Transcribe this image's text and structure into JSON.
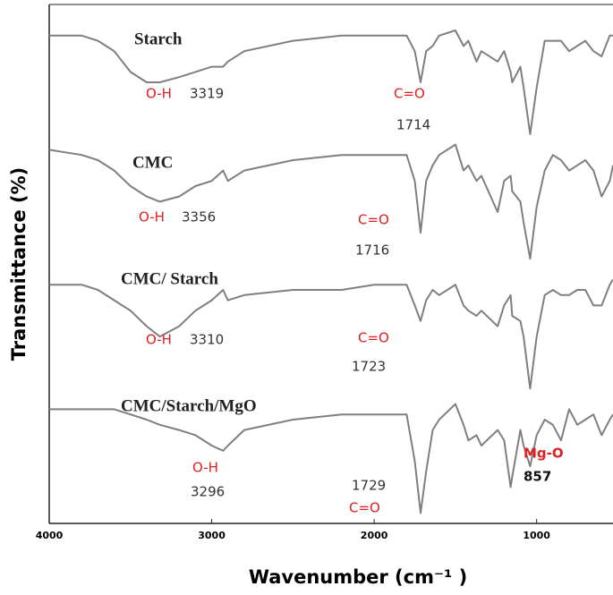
{
  "chart_data": {
    "type": "line",
    "x_label": "Wavenumber (cm⁻¹ )",
    "y_label": "Transmittance (%)",
    "xlim": [
      4000,
      530
    ],
    "xticks": [
      4000,
      3000,
      2000,
      1000
    ],
    "ylim": [
      0,
      100
    ],
    "x": [
      4000,
      3800,
      3700,
      3600,
      3500,
      3400,
      3319,
      3200,
      3100,
      3000,
      2930,
      2900,
      2800,
      2500,
      2200,
      2000,
      1800,
      1750,
      1714,
      1680,
      1640,
      1600,
      1500,
      1450,
      1420,
      1370,
      1340,
      1240,
      1200,
      1160,
      1150,
      1100,
      1080,
      1040,
      1000,
      950,
      900,
      850,
      800,
      750,
      700,
      650,
      600,
      550,
      530
    ],
    "series": [
      {
        "name": "Starch",
        "color": "#7f7f7f",
        "values": [
          94,
          94,
          93,
          91,
          87,
          85,
          85,
          86,
          87,
          88,
          88,
          89,
          91,
          93,
          94,
          94,
          94,
          91,
          85,
          91,
          92,
          94,
          95,
          92,
          93,
          89,
          91,
          89,
          91,
          87,
          85,
          88,
          84,
          75,
          84,
          93,
          93,
          93,
          91,
          92,
          93,
          91,
          90,
          94,
          94
        ]
      },
      {
        "name": "CMC",
        "color": "#7f7f7f",
        "values": [
          72,
          71,
          70,
          68,
          65,
          63,
          62,
          63,
          65,
          66,
          68,
          66,
          68,
          70,
          71,
          71,
          71,
          66,
          56,
          66,
          69,
          71,
          73,
          68,
          69,
          66,
          67,
          60,
          66,
          67,
          64,
          62,
          58,
          51,
          61,
          68,
          71,
          70,
          68,
          69,
          70,
          68,
          63,
          66,
          69
        ]
      },
      {
        "name": "CMC/ Starch",
        "color": "#7f7f7f",
        "values": [
          46,
          46,
          45,
          43,
          41,
          38,
          36,
          38,
          41,
          43,
          45,
          43,
          44,
          45,
          45,
          46,
          46,
          42,
          39,
          43,
          45,
          44,
          46,
          42,
          41,
          40,
          41,
          38,
          42,
          44,
          40,
          39,
          36,
          26,
          36,
          44,
          45,
          44,
          44,
          45,
          45,
          42,
          42,
          46,
          47
        ]
      },
      {
        "name": "CMC/Starch/MgO",
        "color": "#7f7f7f",
        "values": [
          22,
          22,
          22,
          22,
          21,
          20,
          19,
          18,
          17,
          15,
          14,
          15,
          18,
          20,
          21,
          21,
          21,
          12,
          2,
          10,
          18,
          20,
          23,
          19,
          16,
          17,
          15,
          18,
          16,
          7,
          9,
          18,
          15,
          11,
          17,
          20,
          19,
          16,
          22,
          19,
          20,
          21,
          17,
          20,
          21
        ]
      }
    ],
    "annotations": [
      {
        "text": "O-H",
        "color": "#e02020"
      },
      {
        "text": "3319",
        "color": "#333333"
      },
      {
        "text": "C=O",
        "color": "#e02020"
      },
      {
        "text": "1714",
        "color": "#333333"
      },
      {
        "text": "O-H",
        "color": "#e02020"
      },
      {
        "text": "3356",
        "color": "#333333"
      },
      {
        "text": "C=O",
        "color": "#e02020"
      },
      {
        "text": "1716",
        "color": "#333333"
      },
      {
        "text": "O-H",
        "color": "#e02020"
      },
      {
        "text": "3310",
        "color": "#333333"
      },
      {
        "text": "C=O",
        "color": "#e02020"
      },
      {
        "text": "1723",
        "color": "#333333"
      },
      {
        "text": "O-H",
        "color": "#e02020"
      },
      {
        "text": "3296",
        "color": "#333333"
      },
      {
        "text": "1729",
        "color": "#333333"
      },
      {
        "text": "C=O",
        "color": "#e02020"
      },
      {
        "text": "Mg-O",
        "color": "#e02020"
      },
      {
        "text": "857",
        "color": "#111111"
      }
    ]
  }
}
